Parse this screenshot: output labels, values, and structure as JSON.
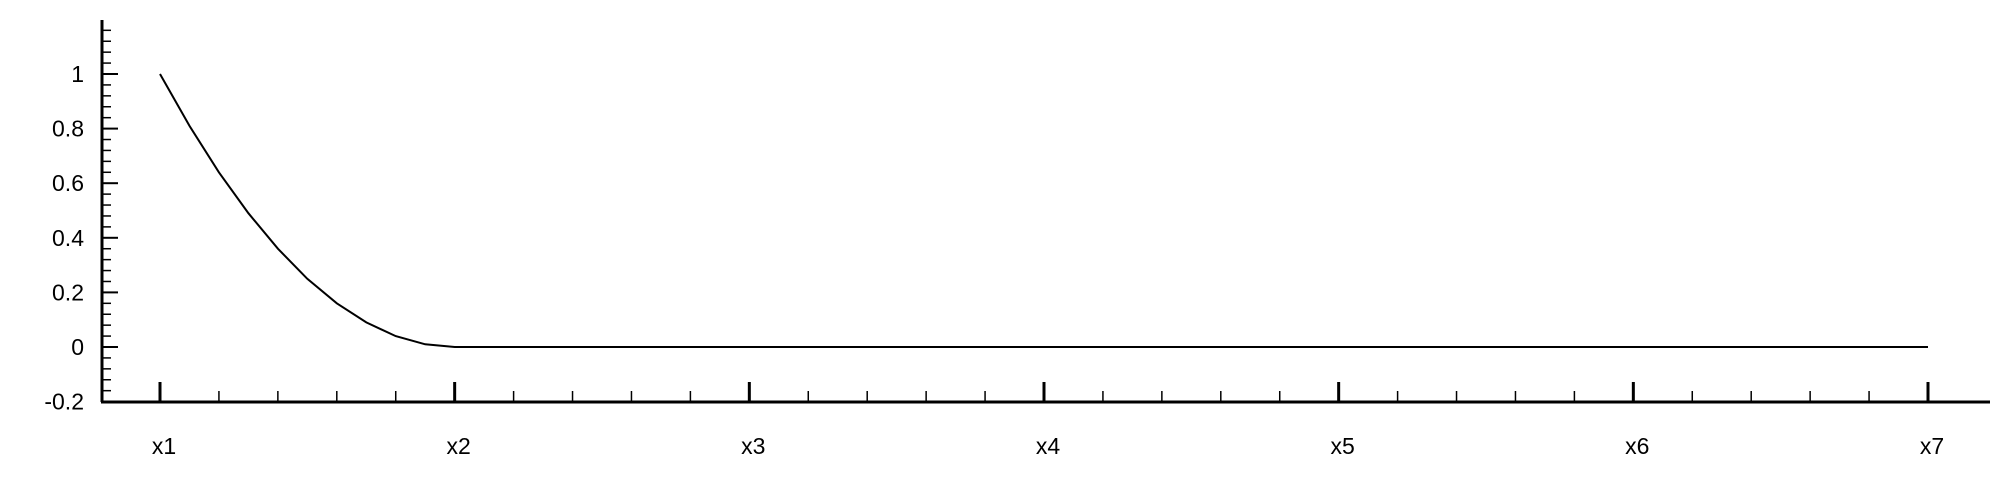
{
  "chart_data": {
    "type": "line",
    "title": "",
    "xlabel": "",
    "ylabel": "",
    "x_tick_labels": [
      "x1",
      "x2",
      "x3",
      "x4",
      "x5",
      "x6",
      "x7"
    ],
    "y_tick_labels": [
      "-0.2",
      "0",
      "0.2",
      "0.4",
      "0.6",
      "0.8",
      "1"
    ],
    "y_ticks": [
      -0.2,
      0,
      0.2,
      0.4,
      0.6,
      0.8,
      1
    ],
    "ylim": [
      -0.2,
      1.2
    ],
    "xlim": [
      1,
      7
    ],
    "grid": false,
    "legend": "none",
    "series": [
      {
        "color": "#000000",
        "x": [
          1.0,
          1.1,
          1.2,
          1.3,
          1.4,
          1.5,
          1.6,
          1.7,
          1.8,
          1.9,
          2.0,
          3.0,
          4.0,
          5.0,
          6.0,
          7.0
        ],
        "y": [
          1.0,
          0.81,
          0.64,
          0.49,
          0.36,
          0.25,
          0.16,
          0.09,
          0.04,
          0.01,
          0.0,
          0.0,
          0.0,
          0.0,
          0.0,
          0.0
        ]
      }
    ]
  }
}
